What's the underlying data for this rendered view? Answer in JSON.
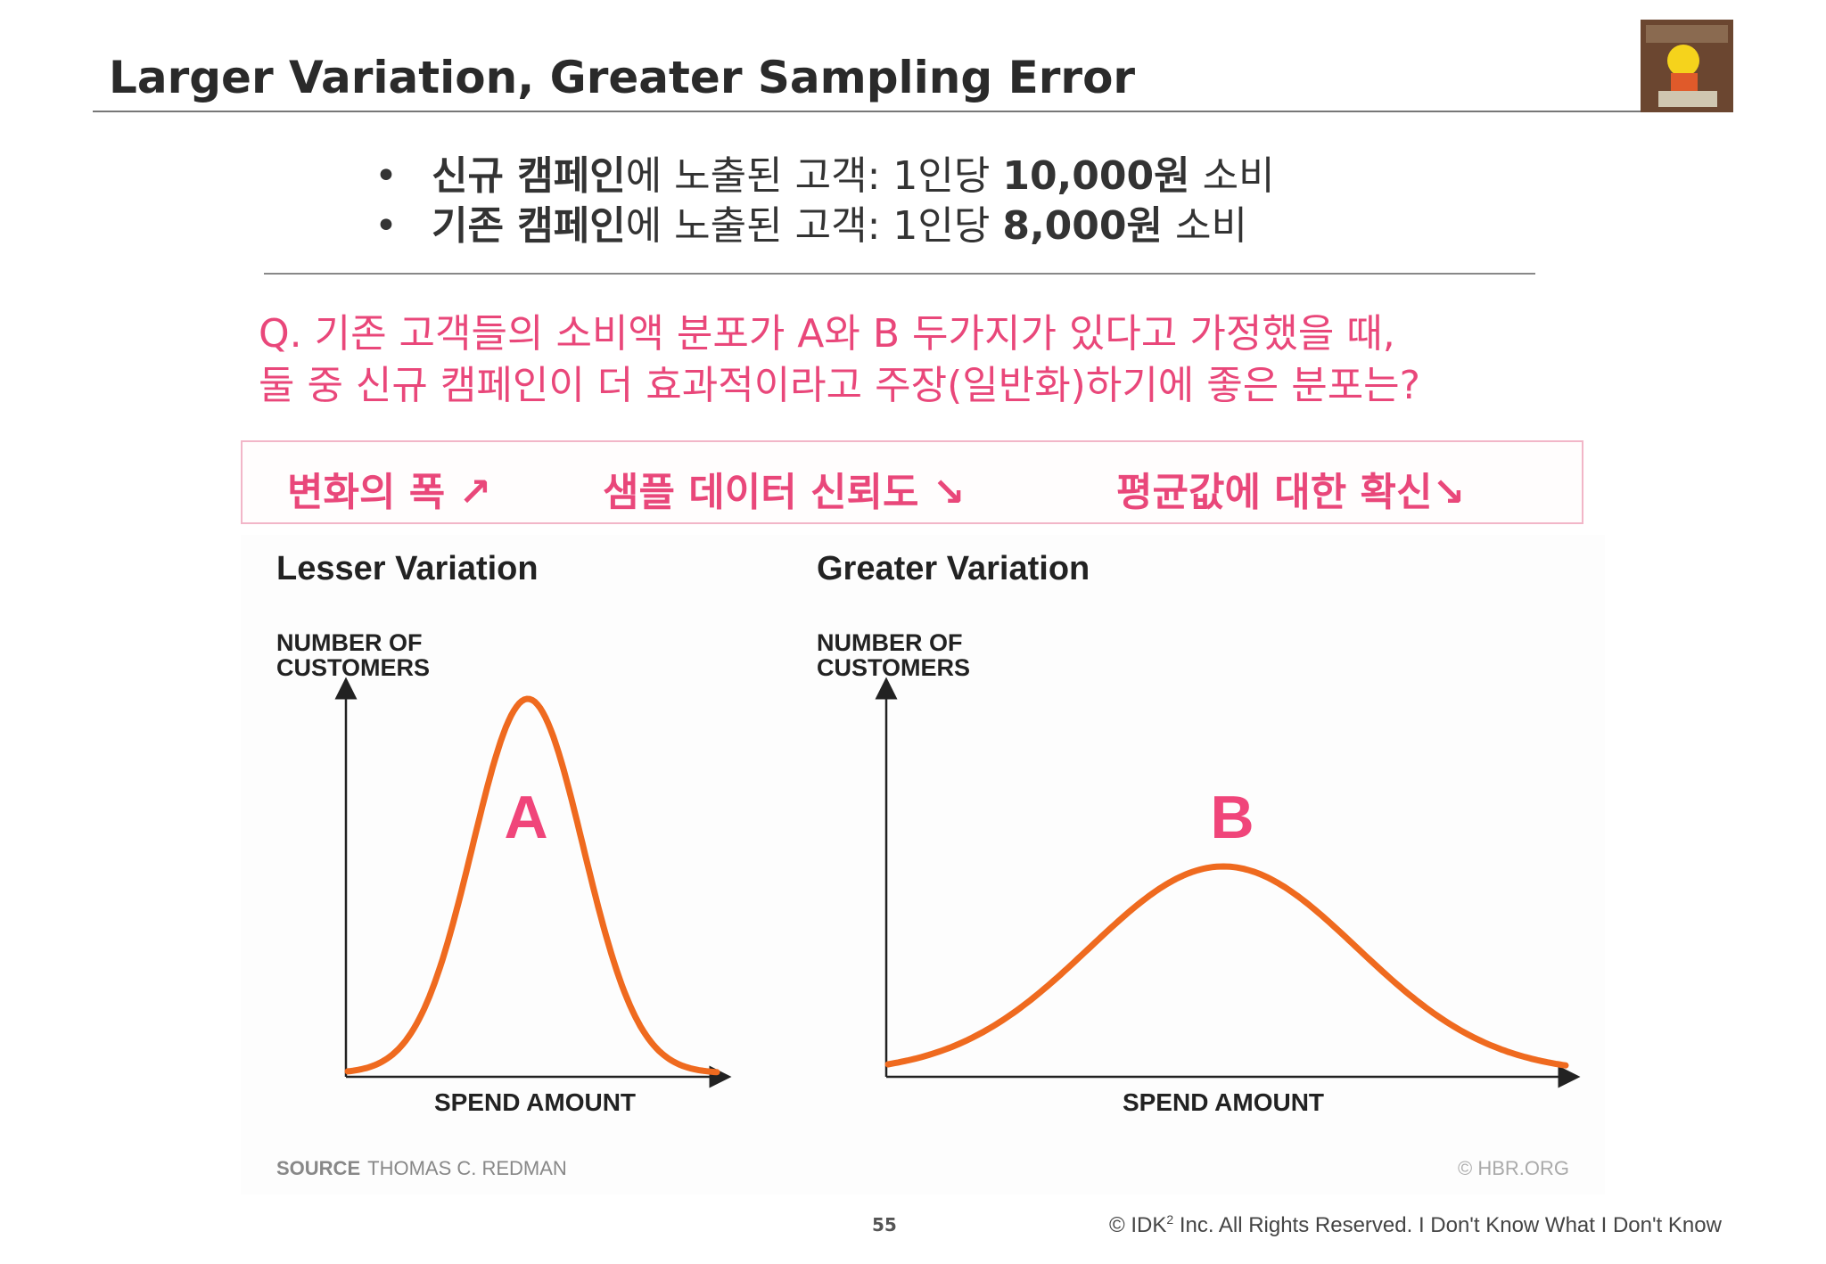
{
  "title": "Larger Variation, Greater Sampling Error",
  "bullets": [
    {
      "bold1": "신규 캠페인",
      "text1": "에 노출된 고객: 1인당 ",
      "bold2": "10,000원",
      "text2": " 소비"
    },
    {
      "bold1": "기존 캠페인",
      "text1": "에 노출된 고객: 1인당 ",
      "bold2": "8,000원",
      "text2": " 소비"
    }
  ],
  "question": {
    "line1": "Q. 기존 고객들의 소비액 분포가 A와 B 두가지가 있다고 가정했을 때,",
    "line2": "둘 중 신규 캠페인이 더 효과적이라고 주장(일반화)하기에 좋은 분포는?"
  },
  "callout": {
    "item1": "변화의 폭 ↗",
    "item2": "샘플 데이터 신뢰도 ↘",
    "item3": "평균값에 대한 확신↘"
  },
  "figure": {
    "left_title": "Lesser Variation",
    "right_title": "Greater Variation",
    "ylabel_line1": "NUMBER OF",
    "ylabel_line2": "CUSTOMERS",
    "xlabel": "SPEND AMOUNT",
    "label_a": "A",
    "label_b": "B",
    "source_label": "SOURCE",
    "source_name": "THOMAS C. REDMAN",
    "copyright": "© HBR.ORG",
    "curve_color": "#ef6a1f",
    "label_color": "#f0457a"
  },
  "footer": {
    "page": "55",
    "copyright_prefix": "© IDK",
    "copyright_sup": "2",
    "copyright_mid": " Inc. All Rights Reserved.  I ",
    "copyright_tail": "Don't Know What I Don't Know"
  }
}
